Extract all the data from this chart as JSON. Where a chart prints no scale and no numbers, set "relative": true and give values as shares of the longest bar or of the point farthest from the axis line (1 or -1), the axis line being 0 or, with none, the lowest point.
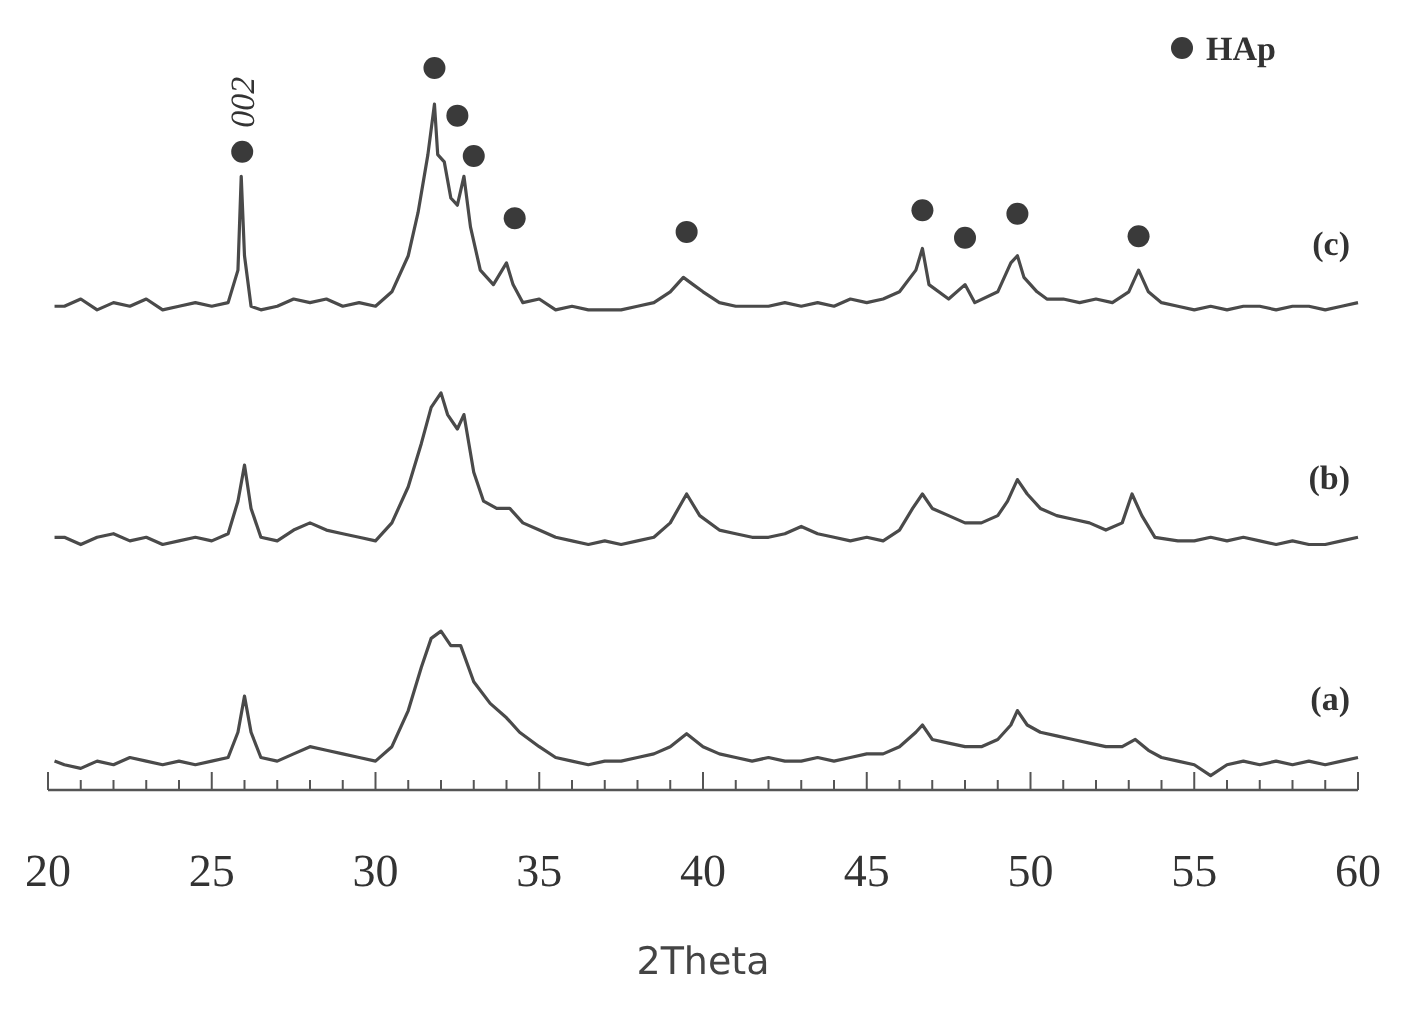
{
  "chart_data": {
    "type": "line",
    "xlabel": "2Theta",
    "relative": true,
    "xlim": [
      20,
      60
    ],
    "xticks": [
      20,
      {
        "value": 21,
        "label": null
      },
      {
        "value": 22,
        "label": null
      },
      {
        "value": 23,
        "label": null
      },
      {
        "value": 24,
        "label": null
      },
      25,
      {
        "value": 26,
        "label": null
      },
      {
        "value": 27,
        "label": null
      },
      {
        "value": 28,
        "label": null
      },
      {
        "value": 29,
        "label": null
      },
      30,
      {
        "value": 31,
        "label": null
      },
      {
        "value": 32,
        "label": null
      },
      {
        "value": 33,
        "label": null
      },
      {
        "value": 34,
        "label": null
      },
      35,
      {
        "value": 36,
        "label": null
      },
      {
        "value": 37,
        "label": null
      },
      {
        "value": 38,
        "label": null
      },
      {
        "value": 39,
        "label": null
      },
      40,
      {
        "value": 41,
        "label": null
      },
      {
        "value": 42,
        "label": null
      },
      {
        "value": 43,
        "label": null
      },
      {
        "value": 44,
        "label": null
      },
      45,
      {
        "value": 46,
        "label": null
      },
      {
        "value": 47,
        "label": null
      },
      {
        "value": 48,
        "label": null
      },
      {
        "value": 49,
        "label": null
      },
      50,
      {
        "value": 51,
        "label": null
      },
      {
        "value": 52,
        "label": null
      },
      {
        "value": 53,
        "label": null
      },
      {
        "value": 54,
        "label": null
      },
      55,
      {
        "value": 56,
        "label": null
      },
      {
        "value": 57,
        "label": null
      },
      {
        "value": 58,
        "label": null
      },
      {
        "value": 59,
        "label": null
      },
      60
    ],
    "legend": "top right",
    "annotations": [
      {
        "text": "002",
        "x": 25.93,
        "y": 0.884
      }
    ],
    "series": [
      {
        "name": "(a)",
        "type": "line",
        "marker": "none",
        "color": "#4a4a4a",
        "x": [
          20.2,
          20.5,
          21,
          21.5,
          22,
          22.5,
          23,
          23.5,
          24,
          24.5,
          25,
          25.5,
          25.8,
          26,
          26.2,
          26.5,
          27,
          27.5,
          28,
          28.5,
          29,
          29.5,
          30,
          30.5,
          31,
          31.4,
          31.7,
          32,
          32.3,
          32.6,
          33,
          33.5,
          34,
          34.4,
          35,
          35.5,
          36,
          36.5,
          37,
          37.5,
          38,
          38.5,
          39,
          39.5,
          40,
          40.5,
          41,
          41.5,
          42,
          42.5,
          43,
          43.5,
          44,
          44.5,
          45,
          45.5,
          46,
          46.5,
          46.7,
          47,
          47.5,
          48,
          48.5,
          49,
          49.4,
          49.6,
          49.9,
          50.3,
          50.8,
          51.3,
          51.8,
          52.3,
          52.8,
          53.2,
          53.6,
          54,
          54.5,
          55,
          55.5,
          56,
          56.5,
          57,
          57.5,
          58,
          58.5,
          59,
          59.5,
          60
        ],
        "values": [
          0.04,
          0.035,
          0.03,
          0.04,
          0.035,
          0.045,
          0.04,
          0.035,
          0.04,
          0.035,
          0.04,
          0.045,
          0.08,
          0.13,
          0.08,
          0.045,
          0.04,
          0.05,
          0.06,
          0.055,
          0.05,
          0.045,
          0.04,
          0.06,
          0.11,
          0.17,
          0.21,
          0.22,
          0.2,
          0.2,
          0.15,
          0.12,
          0.1,
          0.08,
          0.06,
          0.045,
          0.04,
          0.035,
          0.04,
          0.04,
          0.045,
          0.05,
          0.06,
          0.078,
          0.06,
          0.05,
          0.045,
          0.04,
          0.045,
          0.04,
          0.04,
          0.045,
          0.04,
          0.045,
          0.05,
          0.05,
          0.06,
          0.08,
          0.09,
          0.07,
          0.065,
          0.06,
          0.06,
          0.07,
          0.09,
          0.11,
          0.09,
          0.08,
          0.075,
          0.07,
          0.065,
          0.06,
          0.06,
          0.07,
          0.055,
          0.045,
          0.04,
          0.035,
          0.02,
          0.035,
          0.04,
          0.035,
          0.04,
          0.035,
          0.04,
          0.035,
          0.04,
          0.045
        ]
      },
      {
        "name": "(b)",
        "type": "line",
        "marker": "none",
        "color": "#4a4a4a",
        "x": [
          20.2,
          20.5,
          21,
          21.5,
          22,
          22.5,
          23,
          23.5,
          24,
          24.5,
          25,
          25.5,
          25.8,
          26,
          26.2,
          26.5,
          27,
          27.5,
          28,
          28.5,
          29,
          29.5,
          30,
          30.5,
          31,
          31.4,
          31.7,
          32,
          32.2,
          32.5,
          32.7,
          33,
          33.3,
          33.7,
          34.1,
          34.5,
          35,
          35.5,
          36,
          36.5,
          37,
          37.5,
          38,
          38.5,
          39,
          39.5,
          39.9,
          40.5,
          41,
          41.5,
          42,
          42.5,
          43,
          43.5,
          44,
          44.5,
          45,
          45.5,
          46,
          46.4,
          46.7,
          47,
          47.5,
          48,
          48.5,
          49,
          49.3,
          49.6,
          49.9,
          50.3,
          50.8,
          51.3,
          51.8,
          52.3,
          52.8,
          53.1,
          53.4,
          53.8,
          54.5,
          55,
          55.5,
          56,
          56.5,
          57,
          57.5,
          58,
          58.5,
          59,
          59.5,
          60
        ],
        "values": [
          0.35,
          0.35,
          0.34,
          0.35,
          0.355,
          0.345,
          0.35,
          0.34,
          0.345,
          0.35,
          0.345,
          0.355,
          0.4,
          0.45,
          0.39,
          0.35,
          0.345,
          0.36,
          0.37,
          0.36,
          0.355,
          0.35,
          0.345,
          0.37,
          0.42,
          0.48,
          0.53,
          0.55,
          0.52,
          0.5,
          0.52,
          0.44,
          0.4,
          0.39,
          0.39,
          0.37,
          0.36,
          0.35,
          0.345,
          0.34,
          0.345,
          0.34,
          0.345,
          0.35,
          0.37,
          0.41,
          0.38,
          0.36,
          0.355,
          0.35,
          0.35,
          0.355,
          0.365,
          0.355,
          0.35,
          0.345,
          0.35,
          0.345,
          0.36,
          0.39,
          0.41,
          0.39,
          0.38,
          0.37,
          0.37,
          0.38,
          0.4,
          0.43,
          0.41,
          0.39,
          0.38,
          0.375,
          0.37,
          0.36,
          0.37,
          0.41,
          0.38,
          0.35,
          0.345,
          0.345,
          0.35,
          0.345,
          0.35,
          0.345,
          0.34,
          0.345,
          0.34,
          0.34,
          0.345,
          0.35
        ]
      },
      {
        "name": "(c)",
        "type": "line",
        "marker": "none",
        "color": "#4a4a4a",
        "x": [
          20.2,
          20.5,
          21,
          21.5,
          22,
          22.5,
          23,
          23.5,
          24,
          24.5,
          25,
          25.5,
          25.8,
          25.9,
          26,
          26.2,
          26.5,
          27,
          27.5,
          28,
          28.5,
          29,
          29.5,
          30,
          30.5,
          31,
          31.3,
          31.6,
          31.8,
          31.9,
          32.1,
          32.3,
          32.5,
          32.7,
          32.9,
          33.2,
          33.6,
          34,
          34.2,
          34.5,
          35,
          35.5,
          36,
          36.5,
          37,
          37.5,
          38,
          38.5,
          39,
          39.4,
          39.7,
          40,
          40.5,
          41,
          41.5,
          42,
          42.5,
          43,
          43.5,
          44,
          44.5,
          45,
          45.5,
          46,
          46.5,
          46.7,
          46.9,
          47.5,
          48,
          48.3,
          49,
          49.4,
          49.6,
          49.8,
          50.2,
          50.5,
          51,
          51.5,
          52,
          52.5,
          53,
          53.3,
          53.6,
          54,
          54.5,
          55,
          55.5,
          56,
          56.5,
          57,
          57.5,
          58,
          58.5,
          59,
          59.5,
          60
        ],
        "values": [
          0.67,
          0.67,
          0.68,
          0.665,
          0.675,
          0.67,
          0.68,
          0.665,
          0.67,
          0.675,
          0.67,
          0.675,
          0.72,
          0.85,
          0.74,
          0.67,
          0.665,
          0.67,
          0.68,
          0.675,
          0.68,
          0.67,
          0.675,
          0.67,
          0.69,
          0.74,
          0.8,
          0.88,
          0.95,
          0.88,
          0.87,
          0.82,
          0.81,
          0.85,
          0.78,
          0.72,
          0.7,
          0.73,
          0.7,
          0.675,
          0.68,
          0.665,
          0.67,
          0.665,
          0.665,
          0.665,
          0.67,
          0.675,
          0.69,
          0.71,
          0.7,
          0.69,
          0.675,
          0.67,
          0.67,
          0.67,
          0.675,
          0.67,
          0.675,
          0.67,
          0.68,
          0.675,
          0.68,
          0.69,
          0.72,
          0.75,
          0.7,
          0.68,
          0.7,
          0.675,
          0.69,
          0.73,
          0.74,
          0.71,
          0.69,
          0.68,
          0.68,
          0.675,
          0.68,
          0.675,
          0.69,
          0.72,
          0.69,
          0.675,
          0.67,
          0.665,
          0.67,
          0.665,
          0.67,
          0.67,
          0.665,
          0.67,
          0.67,
          0.665,
          0.67,
          0.675
        ]
      },
      {
        "name": "HAp",
        "type": "scatter",
        "marker": "circle",
        "color": "#3a3a3a",
        "x": [
          25.93,
          31.8,
          32.5,
          33.0,
          34.25,
          39.5,
          46.7,
          48.0,
          49.6,
          53.3
        ],
        "values": [
          0.884,
          1,
          0.934,
          0.878,
          0.792,
          0.773,
          0.803,
          0.765,
          0.798,
          0.767
        ]
      }
    ]
  }
}
